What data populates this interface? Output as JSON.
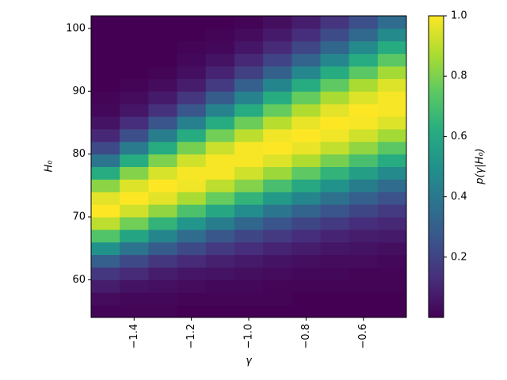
{
  "chart_data": {
    "type": "heatmap",
    "x_label": "γ",
    "y_label": "H₀",
    "colorbar_label": "p(γ|H₀)",
    "colormap": "viridis",
    "x": [
      -1.5,
      -1.4,
      -1.3,
      -1.2,
      -1.1,
      -1.0,
      -0.9,
      -0.8,
      -0.7,
      -0.6,
      -0.5
    ],
    "y": [
      55,
      57,
      59,
      61,
      63,
      65,
      67,
      69,
      71,
      73,
      75,
      77,
      79,
      81,
      83,
      85,
      87,
      89,
      91,
      93,
      95,
      97,
      99,
      101
    ],
    "values": [
      [
        0.01,
        0.01,
        0.01,
        0.0,
        0.0,
        0.0,
        0.0,
        0.0,
        0.0,
        0.0,
        0.0
      ],
      [
        0.03,
        0.02,
        0.02,
        0.01,
        0.01,
        0.01,
        0.01,
        0.0,
        0.0,
        0.0,
        0.0
      ],
      [
        0.08,
        0.05,
        0.04,
        0.03,
        0.02,
        0.02,
        0.01,
        0.01,
        0.01,
        0.01,
        0.01
      ],
      [
        0.16,
        0.12,
        0.08,
        0.06,
        0.05,
        0.04,
        0.03,
        0.02,
        0.02,
        0.01,
        0.01
      ],
      [
        0.3,
        0.22,
        0.16,
        0.12,
        0.09,
        0.07,
        0.05,
        0.04,
        0.03,
        0.03,
        0.02
      ],
      [
        0.5,
        0.38,
        0.29,
        0.22,
        0.17,
        0.13,
        0.1,
        0.08,
        0.06,
        0.05,
        0.04
      ],
      [
        0.72,
        0.58,
        0.45,
        0.35,
        0.27,
        0.21,
        0.17,
        0.13,
        0.1,
        0.08,
        0.07
      ],
      [
        0.9,
        0.78,
        0.65,
        0.52,
        0.42,
        0.33,
        0.26,
        0.21,
        0.17,
        0.13,
        0.11
      ],
      [
        1.0,
        0.93,
        0.83,
        0.71,
        0.59,
        0.48,
        0.39,
        0.32,
        0.26,
        0.21,
        0.17
      ],
      [
        0.96,
        1.0,
        0.96,
        0.87,
        0.76,
        0.65,
        0.54,
        0.45,
        0.37,
        0.3,
        0.25
      ],
      [
        0.82,
        0.95,
        1.0,
        0.98,
        0.9,
        0.81,
        0.7,
        0.6,
        0.51,
        0.42,
        0.35
      ],
      [
        0.61,
        0.81,
        0.94,
        0.99,
        0.99,
        0.93,
        0.85,
        0.75,
        0.65,
        0.56,
        0.47
      ],
      [
        0.39,
        0.61,
        0.8,
        0.93,
        0.99,
        0.99,
        0.95,
        0.88,
        0.79,
        0.7,
        0.61
      ],
      [
        0.22,
        0.41,
        0.61,
        0.79,
        0.92,
        0.99,
        1.0,
        0.97,
        0.91,
        0.83,
        0.74
      ],
      [
        0.11,
        0.24,
        0.42,
        0.61,
        0.78,
        0.9,
        0.98,
        1.0,
        0.98,
        0.93,
        0.86
      ],
      [
        0.05,
        0.13,
        0.26,
        0.43,
        0.61,
        0.77,
        0.89,
        0.97,
        1.0,
        0.99,
        0.95
      ],
      [
        0.02,
        0.06,
        0.14,
        0.27,
        0.44,
        0.61,
        0.76,
        0.88,
        0.96,
        1.0,
        0.99
      ],
      [
        0.01,
        0.03,
        0.07,
        0.16,
        0.29,
        0.44,
        0.61,
        0.76,
        0.87,
        0.95,
        0.99
      ],
      [
        0.0,
        0.01,
        0.03,
        0.08,
        0.17,
        0.3,
        0.45,
        0.61,
        0.75,
        0.87,
        0.95
      ],
      [
        0.0,
        0.0,
        0.01,
        0.04,
        0.1,
        0.19,
        0.31,
        0.46,
        0.61,
        0.74,
        0.86
      ],
      [
        0.0,
        0.0,
        0.0,
        0.02,
        0.05,
        0.11,
        0.2,
        0.32,
        0.46,
        0.61,
        0.74
      ],
      [
        0.0,
        0.0,
        0.0,
        0.01,
        0.02,
        0.06,
        0.12,
        0.21,
        0.33,
        0.47,
        0.61
      ],
      [
        0.0,
        0.0,
        0.0,
        0.0,
        0.01,
        0.03,
        0.07,
        0.13,
        0.23,
        0.34,
        0.47
      ],
      [
        0.0,
        0.0,
        0.0,
        0.0,
        0.0,
        0.01,
        0.04,
        0.08,
        0.15,
        0.24,
        0.35
      ]
    ],
    "xlim": [
      -1.55,
      -0.45
    ],
    "ylim": [
      54,
      102
    ],
    "xticks": [
      {
        "value": -1.4,
        "label": "−1.4"
      },
      {
        "value": -1.2,
        "label": "−1.2"
      },
      {
        "value": -1.0,
        "label": "−1.0"
      },
      {
        "value": -0.8,
        "label": "−0.8"
      },
      {
        "value": -0.6,
        "label": "−0.6"
      }
    ],
    "yticks": [
      60,
      70,
      80,
      90,
      100
    ],
    "clim": [
      0,
      1
    ],
    "cticks": [
      0.2,
      0.4,
      0.6,
      0.8,
      {
        "value": 1,
        "label": "1.0"
      }
    ]
  }
}
